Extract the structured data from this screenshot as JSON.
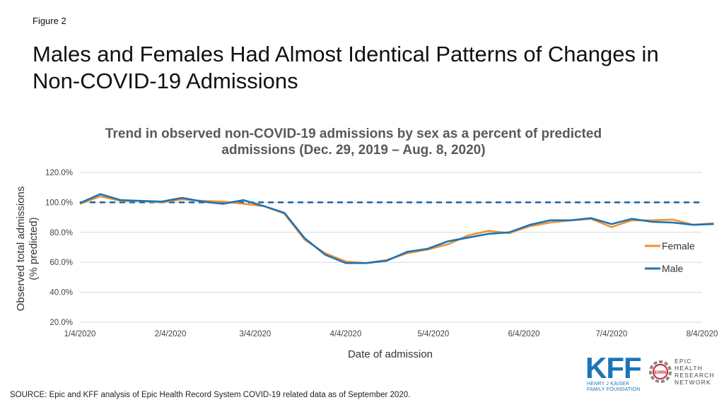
{
  "figure_label": "Figure 2",
  "main_title": "Males and Females Had Almost Identical Patterns of Changes in Non-COVID-19 Admissions",
  "source": "SOURCE: Epic and KFF analysis of Epic Health Record System COVID-19 related data as of September 2020.",
  "logos": {
    "kff": "KFF",
    "kff_sub_line1": "HENRY J KAISER",
    "kff_sub_line2": "FAMILY FOUNDATION",
    "ehr_badge": "EHRN",
    "ehr_line1": "EPIC",
    "ehr_line2": "HEALTH",
    "ehr_line3": "RESEARCH",
    "ehr_line4": "NETWORK"
  },
  "chart_data": {
    "type": "line",
    "title": "Trend in observed non-COVID-19 admissions by sex as a percent of predicted admissions (Dec. 29, 2019 – Aug. 8, 2020)",
    "xlabel": "Date of admission",
    "ylabel": "Observed total admissions (% predicted)",
    "ylim": [
      20,
      120
    ],
    "yticks": [
      "20.0%",
      "40.0%",
      "60.0%",
      "80.0%",
      "100.0%",
      "120.0%"
    ],
    "xticks": [
      "1/4/2020",
      "2/4/2020",
      "3/4/2020",
      "4/4/2020",
      "5/4/2020",
      "6/4/2020",
      "7/4/2020",
      "8/4/2020"
    ],
    "x": [
      "1/4/2020",
      "1/11/2020",
      "1/18/2020",
      "1/25/2020",
      "2/1/2020",
      "2/8/2020",
      "2/15/2020",
      "2/22/2020",
      "2/29/2020",
      "3/7/2020",
      "3/14/2020",
      "3/21/2020",
      "3/28/2020",
      "4/4/2020",
      "4/11/2020",
      "4/18/2020",
      "4/25/2020",
      "5/2/2020",
      "5/9/2020",
      "5/16/2020",
      "5/23/2020",
      "5/30/2020",
      "6/6/2020",
      "6/13/2020",
      "6/20/2020",
      "6/27/2020",
      "7/4/2020",
      "7/11/2020",
      "7/18/2020",
      "7/25/2020",
      "8/1/2020",
      "8/8/2020"
    ],
    "reference_line": {
      "y": 100,
      "style": "dashed",
      "color": "#1f5f9a"
    },
    "grid": true,
    "legend_position": "right",
    "series": [
      {
        "name": "Female",
        "color": "#f0922e",
        "values": [
          99,
          104,
          101,
          101,
          100,
          102,
          101,
          100.5,
          99,
          97.5,
          92.5,
          75,
          66,
          60.5,
          59.5,
          61.5,
          66,
          68.5,
          72,
          78,
          81,
          79.5,
          84,
          86.5,
          88,
          89,
          83.5,
          88,
          88,
          88.5,
          85,
          86
        ]
      },
      {
        "name": "Male",
        "color": "#1a75b8",
        "values": [
          99.5,
          105.5,
          101.5,
          101,
          100.5,
          103,
          100.5,
          99,
          101.5,
          97.5,
          93,
          76,
          65,
          59.5,
          59.5,
          61,
          67,
          69,
          74,
          76.5,
          79,
          80,
          85,
          88,
          88,
          89.5,
          85.5,
          89,
          87,
          86.5,
          85,
          85.5
        ]
      }
    ]
  }
}
